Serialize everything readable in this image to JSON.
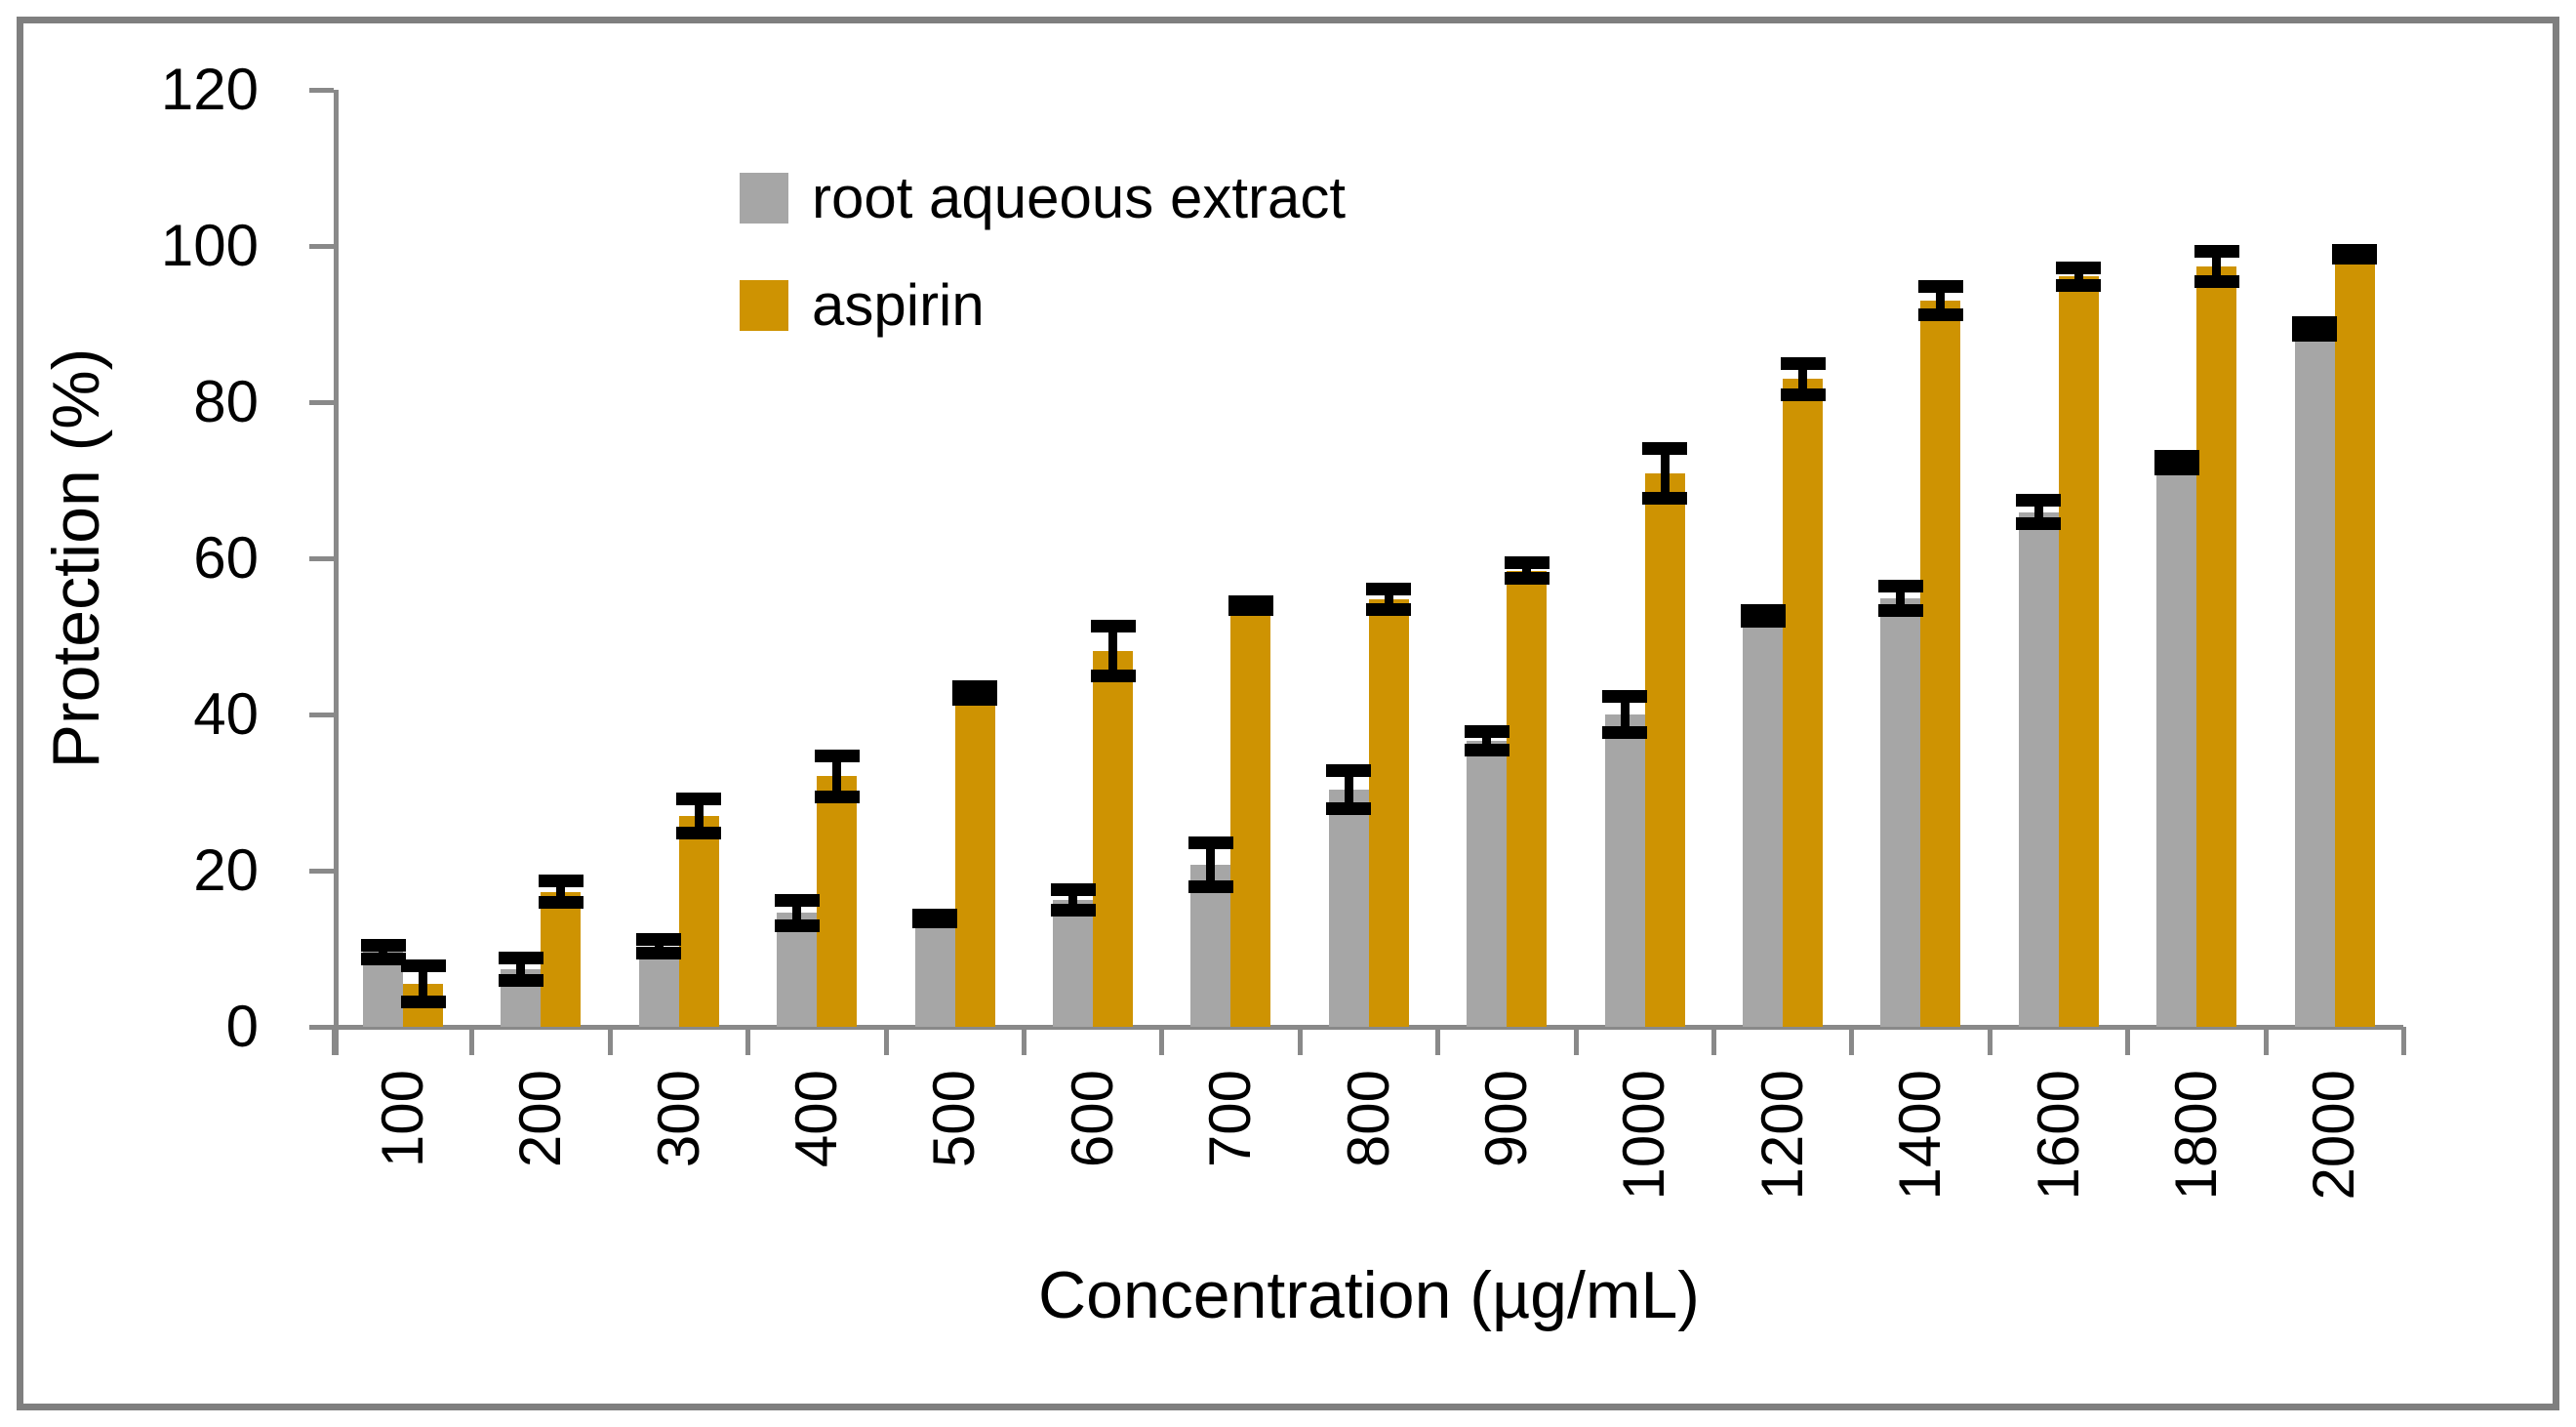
{
  "figure": {
    "background": "#ffffff",
    "border_color": "#7f7f7f"
  },
  "chart_data": {
    "type": "bar",
    "title": "",
    "xlabel": "Concentration (µg/mL)",
    "ylabel": "Protection (%)",
    "ylim": [
      0,
      120
    ],
    "yticks": [
      0,
      20,
      40,
      60,
      80,
      100,
      120
    ],
    "grid": false,
    "legend_position": "upper-left-inside",
    "axis_color": "#898989",
    "error_bar_color": "#000000",
    "categories": [
      "100",
      "200",
      "300",
      "400",
      "500",
      "600",
      "700",
      "800",
      "900",
      "1000",
      "1200",
      "1400",
      "1600",
      "1800",
      "2000"
    ],
    "series": [
      {
        "name": "root aqueous extract",
        "color": "#A6A6A6",
        "values": [
          9.6,
          7.4,
          10.3,
          14.6,
          13.9,
          16.3,
          20.8,
          30.4,
          36.6,
          40.0,
          52.6,
          54.9,
          65.9,
          72.3,
          89.4
        ],
        "errors": [
          0.9,
          1.4,
          0.9,
          1.6,
          0.4,
          1.3,
          2.8,
          2.4,
          1.2,
          2.3,
          0.7,
          1.6,
          1.5,
          0.8,
          0.8
        ]
      },
      {
        "name": "aspirin",
        "color": "#CE9302",
        "values": [
          5.5,
          17.3,
          27.0,
          32.1,
          42.8,
          48.1,
          54.0,
          54.8,
          58.4,
          70.9,
          83.0,
          93.0,
          96.1,
          97.4,
          98.9
        ],
        "errors": [
          2.3,
          1.4,
          2.2,
          2.6,
          0.8,
          3.2,
          0.5,
          1.3,
          1.0,
          3.2,
          2.0,
          1.8,
          1.1,
          1.9,
          0.5
        ]
      }
    ]
  }
}
